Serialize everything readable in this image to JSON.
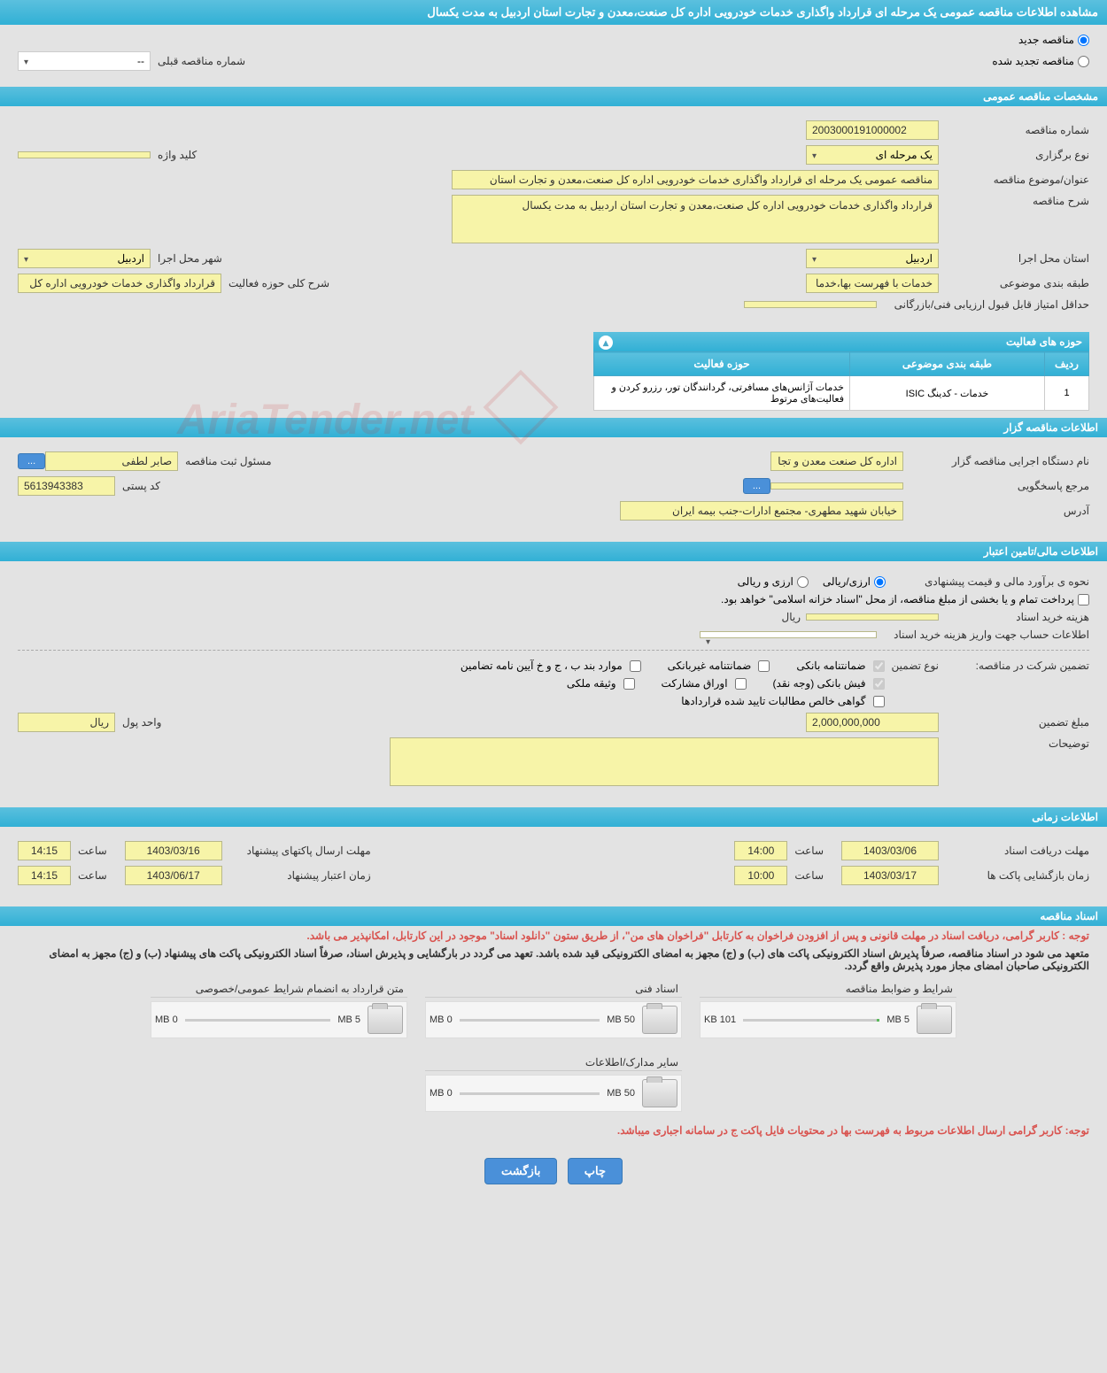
{
  "header": {
    "page_title": "مشاهده اطلاعات مناقصه عمومی یک مرحله ای قرارداد واگذاری خدمات خودرویی اداره کل صنعت،معدن و تجارت استان اردبیل به مدت یکسال"
  },
  "top_radio": {
    "new_tender": "مناقصه جدید",
    "renewed_tender": "مناقصه تجدید شده",
    "prev_label": "شماره مناقصه قبلی",
    "prev_value": "--"
  },
  "sections": {
    "general": "مشخصات مناقصه عمومی",
    "organizer": "اطلاعات مناقصه گزار",
    "financial": "اطلاعات مالی/تامین اعتبار",
    "timing": "اطلاعات زمانی",
    "documents": "اسناد مناقصه"
  },
  "general": {
    "tender_no_label": "شماره مناقصه",
    "tender_no": "2003000191000002",
    "type_label": "نوع برگزاری",
    "type_value": "یک مرحله ای",
    "keyword_label": "کلید واژه",
    "keyword_value": "",
    "subject_label": "عنوان/موضوع مناقصه",
    "subject_value": "مناقصه عمومی یک مرحله ای قرارداد واگذاری خدمات خودرویی اداره کل صنعت،معدن و تجارت استان",
    "desc_label": "شرح مناقصه",
    "desc_value": "قرارداد واگذاری خدمات خودرویی اداره کل صنعت،معدن و تجارت استان اردبیل به مدت یکسال",
    "province_label": "استان محل اجرا",
    "province_value": "اردبیل",
    "city_label": "شهر محل اجرا",
    "city_value": "اردبیل",
    "category_label": "طبقه بندی موضوعی",
    "category_value": "خدمات با فهرست بها،خدما",
    "scope_label": "شرح کلی حوزه فعالیت",
    "scope_value": "قرارداد واگذاری خدمات خودرویی اداره کل",
    "min_score_label": "حداقل امتیاز قابل قبول ارزیابی فنی/بازرگانی",
    "min_score_value": ""
  },
  "activity_table": {
    "title": "حوزه های فعالیت",
    "col_row": "ردیف",
    "col_category": "طبقه بندی موضوعی",
    "col_scope": "حوزه فعالیت",
    "rows": [
      {
        "num": "1",
        "category": "خدمات - کدینگ ISIC",
        "scope": "خدمات آژانس‌های مسافرتی، گردانندگان تور، رزرو کردن و فعالیت‌های مرتوط"
      }
    ]
  },
  "organizer": {
    "exec_label": "نام دستگاه اجرایی مناقصه گزار",
    "exec_value": "اداره کل صنعت معدن و تجا",
    "reg_officer_label": "مسئول ثبت مناقصه",
    "reg_officer_value": "صابر لطفی",
    "contact_label": "مرجع پاسخگویی",
    "contact_value": "",
    "postal_label": "کد پستی",
    "postal_value": "5613943383",
    "address_label": "آدرس",
    "address_value": "خیابان شهید مطهری- مجتمع ادارات-جنب بیمه ایران",
    "more_btn": "..."
  },
  "financial": {
    "estimate_label": "نحوه ی برآورد مالی و قیمت پیشنهادی",
    "currency_option1": "ارزی/ریالی",
    "currency_option2": "ارزی و ریالی",
    "payment_note": "پرداخت تمام و یا بخشی از مبلغ مناقصه، از محل \"اسناد خزانه اسلامی\" خواهد بود.",
    "doc_cost_label": "هزینه خرید اسناد",
    "doc_cost_value": "",
    "doc_cost_unit": "ریال",
    "account_label": "اطلاعات حساب جهت واریز هزینه خرید اسناد",
    "guarantee_label": "تضمین شرکت در مناقصه:",
    "guarantee_type_label": "نوع تضمین",
    "gtype1": "ضمانتنامه بانکی",
    "gtype2": "ضمانتنامه غیربانکی",
    "gtype3": "موارد بند ب ، ج و خ آیین نامه تضامین",
    "gtype4": "فیش بانکی (وجه نقد)",
    "gtype5": "اوراق مشارکت",
    "gtype6": "وثیقه ملکی",
    "gtype7": "گواهی خالص مطالبات تایید شده قراردادها",
    "guarantee_amount_label": "مبلغ تضمین",
    "guarantee_amount_value": "2,000,000,000",
    "money_unit_label": "واحد پول",
    "money_unit_value": "ریال",
    "notes_label": "توضیحات",
    "notes_value": ""
  },
  "timing": {
    "doc_deadline_label": "مهلت دریافت اسناد",
    "doc_deadline_date": "1403/03/06",
    "doc_deadline_time_label": "ساعت",
    "doc_deadline_time": "14:00",
    "submit_deadline_label": "مهلت ارسال پاکتهای پیشنهاد",
    "submit_deadline_date": "1403/03/16",
    "submit_deadline_time": "14:15",
    "open_label": "زمان بازگشایی پاکت ها",
    "open_date": "1403/03/17",
    "open_time": "10:00",
    "validity_label": "زمان اعتبار پیشنهاد",
    "validity_date": "1403/06/17",
    "validity_time": "14:15"
  },
  "documents": {
    "warning1": "توجه : کاربر گرامی، دریافت اسناد در مهلت قانونی و پس از افزودن فراخوان به کارتابل \"فراخوان های من\"، از طریق ستون \"دانلود اسناد\" موجود در این کارتابل، امکانپذیر می باشد.",
    "note1": "متعهد می شود در اسناد مناقصه، صرفاً پذیرش اسناد الکترونیکی پاکت های (ب) و (ج) مجهز به امضای الکترونیکی قید شده باشد. تعهد می گردد در بارگشایی و پذیرش اسناد، صرفاً اسناد الکترونیکی پاکت های پیشنهاد (ب) و (ج) مجهز به امضای الکترونیکی صاحبان امضای مجاز مورد پذیرش واقع گردد.",
    "items": [
      {
        "title": "شرایط و ضوابط مناقصه",
        "size": "101 KB",
        "max": "5 MB",
        "fill_pct": 2
      },
      {
        "title": "اسناد فنی",
        "size": "0 MB",
        "max": "50 MB",
        "fill_pct": 0
      },
      {
        "title": "متن قرارداد به انضمام شرایط عمومی/خصوصی",
        "size": "0 MB",
        "max": "5 MB",
        "fill_pct": 0
      },
      {
        "title": "سایر مدارک/اطلاعات",
        "size": "0 MB",
        "max": "50 MB",
        "fill_pct": 0
      }
    ],
    "warning2": "توجه: کاربر گرامی ارسال اطلاعات مربوط به فهرست بها در محتویات فایل پاکت ج در سامانه اجباری میباشد."
  },
  "footer": {
    "print_btn": "چاپ",
    "back_btn": "بازگشت"
  },
  "watermark_text": "AriaTender.net",
  "colors": {
    "header_bg": "#31b0d5",
    "field_bg": "#f7f4a8",
    "btn_bg": "#4a90d9",
    "warning": "#d9534f"
  }
}
